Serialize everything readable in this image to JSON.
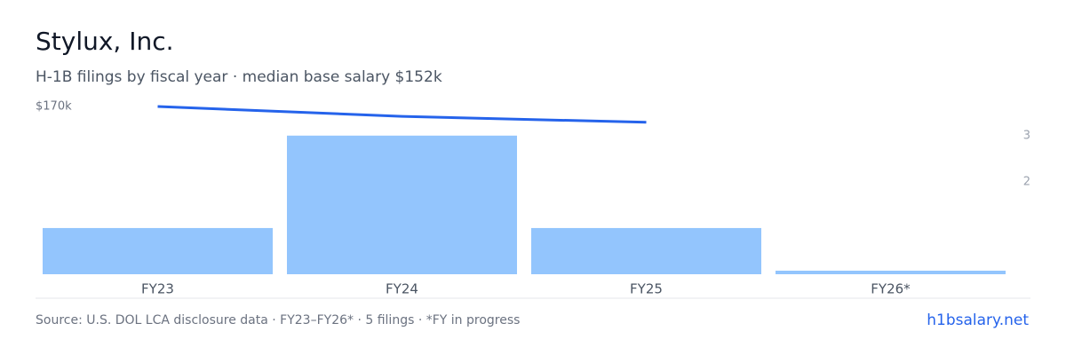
{
  "chart_data": {
    "type": "bar-line",
    "title": "Stylux, Inc.",
    "subtitle": "H-1B filings by fiscal year · median base salary $152k",
    "categories": [
      "FY23",
      "FY24",
      "FY25",
      "FY26*"
    ],
    "series": [
      {
        "name": "H-1B filings",
        "type": "bar",
        "axis": "y2",
        "color": "#93c5fd",
        "values": [
          1,
          3,
          1,
          0
        ]
      },
      {
        "name": "Median base salary",
        "type": "line",
        "axis": "y",
        "color": "#2563eb",
        "values": [
          170000,
          160000,
          154000,
          null
        ]
      }
    ],
    "ylim": [
      0,
      170000
    ],
    "yticks": [
      {
        "value": 170000,
        "label": "$170k"
      }
    ],
    "y2lim": [
      0,
      3.63
    ],
    "y2ticks": [
      2,
      3
    ],
    "footer": "Source: U.S. DOL LCA disclosure data · FY23–FY26* · 5 filings · *FY in progress",
    "link": "h1bsalary.net"
  }
}
